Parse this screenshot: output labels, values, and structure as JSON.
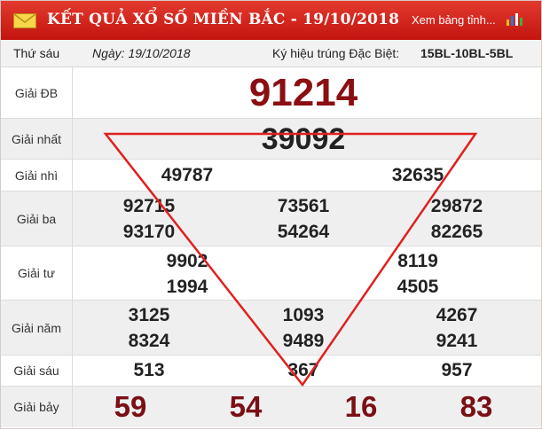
{
  "header": {
    "title": "KẾT QUẢ XỔ SỐ MIỀN BẮC - 19/10/2018",
    "more_link": "Xem bảng tỉnh...",
    "bg_color": "#d4211a"
  },
  "info": {
    "weekday": "Thứ sáu",
    "date": "Ngày: 19/10/2018",
    "special_code_label": "Ký hiệu trúng Đặc Biệt:",
    "special_code": "15BL-10BL-5BL"
  },
  "prizes": {
    "db": {
      "label": "Giải ĐB",
      "numbers": [
        "91214"
      ]
    },
    "nhat": {
      "label": "Giải nhất",
      "numbers": [
        "39092"
      ]
    },
    "nhi": {
      "label": "Giải nhì",
      "numbers": [
        "49787",
        "32635"
      ]
    },
    "ba": {
      "label": "Giải ba",
      "numbers": [
        "92715",
        "73561",
        "29872",
        "93170",
        "54264",
        "82265"
      ]
    },
    "tu": {
      "label": "Giải tư",
      "numbers": [
        "9902",
        "8119",
        "1994",
        "4505"
      ]
    },
    "nam": {
      "label": "Giải năm",
      "numbers": [
        "3125",
        "1093",
        "4267",
        "8324",
        "9489",
        "9241"
      ]
    },
    "sau": {
      "label": "Giải sáu",
      "numbers": [
        "513",
        "367",
        "957"
      ]
    },
    "bay": {
      "label": "Giải bảy",
      "numbers": [
        "59",
        "54",
        "16",
        "83"
      ]
    }
  },
  "annotation": {
    "shape": "inverted-triangle",
    "color": "#e02020"
  }
}
